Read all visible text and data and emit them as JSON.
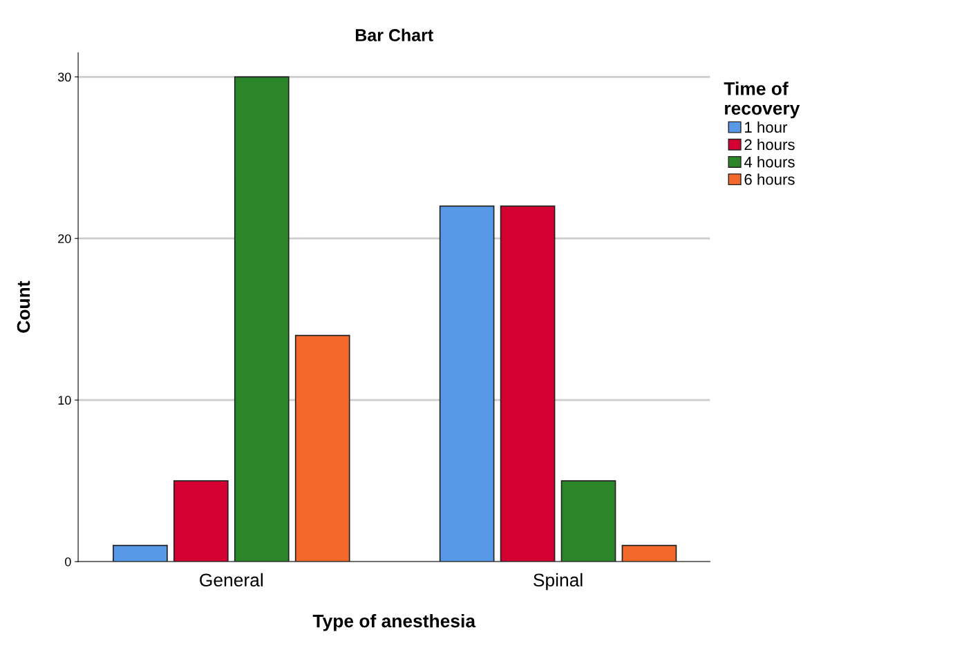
{
  "chart_data": {
    "type": "bar",
    "title": "Bar Chart",
    "xlabel": "Type of anesthesia",
    "ylabel": "Count",
    "legend_title": "Time of\nrecovery",
    "categories": [
      "General",
      "Spinal"
    ],
    "series": [
      {
        "name": "1 hour",
        "color": "#5799e6",
        "values": [
          1,
          22
        ]
      },
      {
        "name": "2 hours",
        "color": "#d50032",
        "values": [
          5,
          22
        ]
      },
      {
        "name": "4 hours",
        "color": "#2a8629",
        "values": [
          30,
          5
        ]
      },
      {
        "name": "6 hours",
        "color": "#f2692b",
        "values": [
          14,
          1
        ]
      }
    ],
    "ylim": [
      0,
      31.5
    ],
    "yticks": [
      0,
      10,
      20,
      30
    ],
    "grid": "y",
    "legend": "top right"
  }
}
